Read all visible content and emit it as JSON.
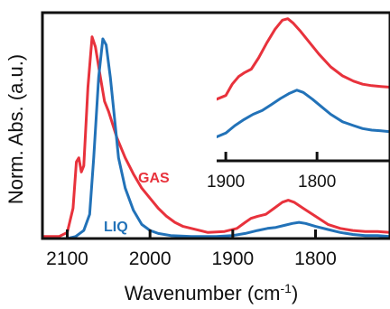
{
  "chart_data": {
    "type": "line",
    "xlabel": "Wavenumber (cm",
    "xlabel_sup": "-1",
    "xlabel_close": ")",
    "ylabel": "Norm. Abs. (a.u.)",
    "xlim": [
      2130,
      1710
    ],
    "x_reversed": true,
    "ylim": [
      0,
      1.12
    ],
    "grid": false,
    "x_ticks": [
      {
        "value": 2100,
        "label": "2100"
      },
      {
        "value": 2000,
        "label": "2000"
      },
      {
        "value": 1900,
        "label": "1900"
      },
      {
        "value": 1800,
        "label": "1800"
      }
    ],
    "series": [
      {
        "name": "GAS",
        "color": "#e8323c",
        "points": [
          [
            2130,
            0.01
          ],
          [
            2110,
            0.01
          ],
          [
            2100,
            0.03
          ],
          [
            2093,
            0.15
          ],
          [
            2089,
            0.38
          ],
          [
            2086,
            0.4
          ],
          [
            2083,
            0.33
          ],
          [
            2080,
            0.36
          ],
          [
            2075,
            0.75
          ],
          [
            2070,
            1.0
          ],
          [
            2066,
            0.95
          ],
          [
            2060,
            0.8
          ],
          [
            2055,
            0.68
          ],
          [
            2050,
            0.63
          ],
          [
            2040,
            0.5
          ],
          [
            2030,
            0.4
          ],
          [
            2020,
            0.32
          ],
          [
            2010,
            0.25
          ],
          [
            2000,
            0.2
          ],
          [
            1990,
            0.15
          ],
          [
            1980,
            0.11
          ],
          [
            1970,
            0.08
          ],
          [
            1960,
            0.06
          ],
          [
            1950,
            0.05
          ],
          [
            1930,
            0.03
          ],
          [
            1910,
            0.035
          ],
          [
            1895,
            0.05
          ],
          [
            1885,
            0.08
          ],
          [
            1878,
            0.1
          ],
          [
            1870,
            0.11
          ],
          [
            1860,
            0.12
          ],
          [
            1850,
            0.15
          ],
          [
            1840,
            0.18
          ],
          [
            1833,
            0.19
          ],
          [
            1826,
            0.18
          ],
          [
            1815,
            0.15
          ],
          [
            1800,
            0.11
          ],
          [
            1785,
            0.07
          ],
          [
            1770,
            0.05
          ],
          [
            1755,
            0.04
          ],
          [
            1740,
            0.035
          ],
          [
            1725,
            0.035
          ],
          [
            1710,
            0.03
          ]
        ]
      },
      {
        "name": "LIQ",
        "color": "#2272b8",
        "points": [
          [
            2130,
            0.0
          ],
          [
            2100,
            0.0
          ],
          [
            2090,
            0.01
          ],
          [
            2080,
            0.04
          ],
          [
            2073,
            0.12
          ],
          [
            2068,
            0.4
          ],
          [
            2062,
            0.8
          ],
          [
            2057,
            0.99
          ],
          [
            2053,
            0.96
          ],
          [
            2048,
            0.8
          ],
          [
            2043,
            0.6
          ],
          [
            2038,
            0.4
          ],
          [
            2030,
            0.25
          ],
          [
            2020,
            0.14
          ],
          [
            2010,
            0.07
          ],
          [
            2000,
            0.04
          ],
          [
            1990,
            0.025
          ],
          [
            1975,
            0.015
          ],
          [
            1950,
            0.01
          ],
          [
            1920,
            0.01
          ],
          [
            1900,
            0.015
          ],
          [
            1885,
            0.025
          ],
          [
            1870,
            0.04
          ],
          [
            1858,
            0.05
          ],
          [
            1848,
            0.055
          ],
          [
            1838,
            0.065
          ],
          [
            1828,
            0.075
          ],
          [
            1820,
            0.08
          ],
          [
            1812,
            0.075
          ],
          [
            1800,
            0.06
          ],
          [
            1785,
            0.045
          ],
          [
            1770,
            0.03
          ],
          [
            1755,
            0.02
          ],
          [
            1740,
            0.015
          ],
          [
            1725,
            0.015
          ],
          [
            1710,
            0.01
          ]
        ]
      }
    ],
    "annotations": [
      {
        "text": "GAS",
        "series": 0
      },
      {
        "text": "LIQ",
        "series": 1
      }
    ],
    "inset": {
      "x_ticks": [
        {
          "value": 1900,
          "label": "1900"
        },
        {
          "value": 1800,
          "label": "1800"
        }
      ],
      "xlim": [
        1910,
        1720
      ],
      "ylim": [
        0.02,
        0.2
      ],
      "series": [
        {
          "color": "#e8323c",
          "points": [
            [
              1910,
              0.085
            ],
            [
              1900,
              0.09
            ],
            [
              1893,
              0.105
            ],
            [
              1886,
              0.115
            ],
            [
              1880,
              0.12
            ],
            [
              1872,
              0.125
            ],
            [
              1864,
              0.14
            ],
            [
              1855,
              0.16
            ],
            [
              1846,
              0.178
            ],
            [
              1838,
              0.19
            ],
            [
              1832,
              0.192
            ],
            [
              1826,
              0.186
            ],
            [
              1818,
              0.175
            ],
            [
              1808,
              0.16
            ],
            [
              1798,
              0.145
            ],
            [
              1785,
              0.128
            ],
            [
              1772,
              0.116
            ],
            [
              1760,
              0.109
            ],
            [
              1750,
              0.105
            ],
            [
              1740,
              0.103
            ],
            [
              1730,
              0.102
            ],
            [
              1720,
              0.101
            ]
          ]
        },
        {
          "color": "#2272b8",
          "points": [
            [
              1910,
              0.035
            ],
            [
              1900,
              0.04
            ],
            [
              1890,
              0.05
            ],
            [
              1880,
              0.058
            ],
            [
              1870,
              0.065
            ],
            [
              1860,
              0.07
            ],
            [
              1850,
              0.078
            ],
            [
              1840,
              0.086
            ],
            [
              1830,
              0.093
            ],
            [
              1822,
              0.097
            ],
            [
              1815,
              0.094
            ],
            [
              1805,
              0.085
            ],
            [
              1795,
              0.075
            ],
            [
              1785,
              0.065
            ],
            [
              1772,
              0.055
            ],
            [
              1760,
              0.05
            ],
            [
              1750,
              0.046
            ],
            [
              1740,
              0.044
            ],
            [
              1730,
              0.043
            ],
            [
              1720,
              0.042
            ]
          ]
        }
      ]
    }
  }
}
